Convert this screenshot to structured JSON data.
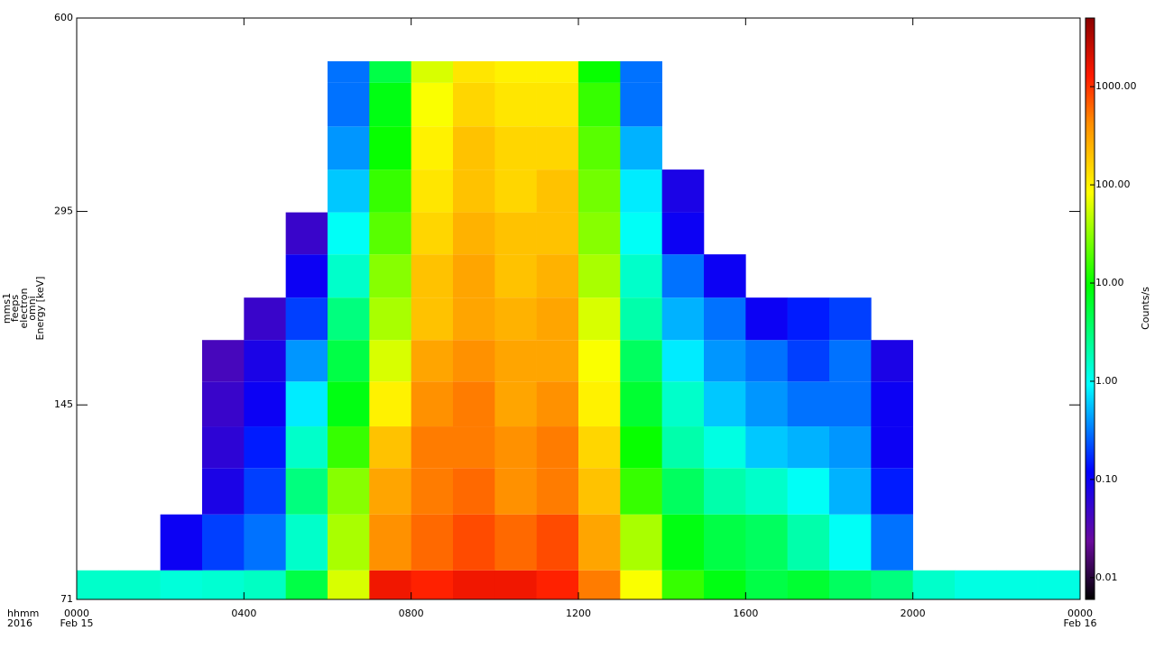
{
  "chart_data": {
    "type": "heatmap",
    "ylabel": [
      "mms1",
      "feeps",
      "electron",
      "omni",
      "Energy [keV]"
    ],
    "xlabel": "hhmm",
    "xlabel_year": "2016",
    "xlim": [
      0,
      24
    ],
    "xticks": [
      {
        "value": 0,
        "label": "0000"
      },
      {
        "value": 4,
        "label": "0400"
      },
      {
        "value": 8,
        "label": "0800"
      },
      {
        "value": 12,
        "label": "1200"
      },
      {
        "value": 16,
        "label": "1600"
      },
      {
        "value": 20,
        "label": "2000"
      },
      {
        "value": 24,
        "label": "0000"
      }
    ],
    "xtick_dates": [
      {
        "value": 0,
        "label": "Feb 15"
      },
      {
        "value": 24,
        "label": "Feb 16"
      }
    ],
    "ylim": [
      71,
      600
    ],
    "ylog": true,
    "yticks": [
      71,
      145,
      295,
      600
    ],
    "x_bins": [
      0,
      1,
      2,
      3,
      4,
      5,
      6,
      7,
      8,
      9,
      10,
      11,
      12,
      13,
      14,
      15,
      16,
      17,
      18,
      19,
      20,
      21,
      22,
      23,
      24
    ],
    "y_bins": [
      71,
      79,
      97,
      115,
      134,
      158,
      184,
      215,
      252,
      294,
      344,
      403,
      473,
      512
    ],
    "z": [
      [
        1.5,
        1.5,
        1.3,
        1.4,
        1.6,
        5,
        60,
        1500,
        1200,
        1500,
        1500,
        1200,
        500,
        80,
        15,
        8,
        5,
        6,
        4,
        3,
        1.5,
        1.2,
        1.2,
        1.2
      ],
      [
        null,
        null,
        0.1,
        0.2,
        0.3,
        1.5,
        40,
        400,
        600,
        800,
        600,
        800,
        300,
        40,
        8,
        5,
        4,
        2,
        1,
        0.3,
        null,
        null,
        null,
        null
      ],
      [
        null,
        null,
        null,
        0.08,
        0.2,
        3,
        30,
        300,
        500,
        600,
        400,
        500,
        200,
        15,
        4,
        2,
        1.5,
        1,
        0.5,
        0.15,
        null,
        null,
        null,
        null
      ],
      [
        null,
        null,
        null,
        0.06,
        0.15,
        1.5,
        15,
        200,
        500,
        500,
        400,
        500,
        150,
        10,
        2,
        1.2,
        0.6,
        0.5,
        0.4,
        0.1,
        null,
        null,
        null,
        null
      ],
      [
        null,
        null,
        null,
        0.05,
        0.1,
        0.8,
        8,
        100,
        400,
        500,
        300,
        400,
        100,
        6,
        1.5,
        0.6,
        0.4,
        0.3,
        0.3,
        0.1,
        null,
        null,
        null,
        null
      ],
      [
        null,
        null,
        null,
        0.04,
        0.08,
        0.4,
        5,
        60,
        300,
        400,
        300,
        300,
        80,
        4,
        0.8,
        0.4,
        0.3,
        0.2,
        0.3,
        0.08,
        null,
        null,
        null,
        null
      ],
      [
        null,
        null,
        null,
        null,
        0.05,
        0.2,
        3,
        40,
        200,
        300,
        250,
        300,
        60,
        2,
        0.5,
        0.3,
        0.1,
        0.15,
        0.2,
        null,
        null,
        null,
        null,
        null
      ],
      [
        null,
        null,
        null,
        null,
        null,
        0.1,
        1.5,
        30,
        200,
        300,
        200,
        250,
        40,
        1.5,
        0.3,
        0.1,
        null,
        null,
        null,
        null,
        null,
        null,
        null,
        null
      ],
      [
        null,
        null,
        null,
        null,
        null,
        0.05,
        1,
        20,
        150,
        250,
        200,
        200,
        30,
        1,
        0.1,
        null,
        null,
        null,
        null,
        null,
        null,
        null,
        null,
        null
      ],
      [
        null,
        null,
        null,
        null,
        null,
        null,
        0.6,
        15,
        120,
        200,
        150,
        200,
        25,
        0.8,
        0.08,
        null,
        null,
        null,
        null,
        null,
        null,
        null,
        null,
        null
      ],
      [
        null,
        null,
        null,
        null,
        null,
        null,
        0.4,
        10,
        100,
        200,
        150,
        150,
        20,
        0.5,
        null,
        null,
        null,
        null,
        null,
        null,
        null,
        null,
        null,
        null
      ],
      [
        null,
        null,
        null,
        null,
        null,
        null,
        0.3,
        8,
        80,
        150,
        120,
        120,
        15,
        0.3,
        null,
        null,
        null,
        null,
        null,
        null,
        null,
        null,
        null,
        null
      ],
      [
        null,
        null,
        null,
        null,
        null,
        null,
        0.3,
        5,
        60,
        120,
        100,
        100,
        10,
        0.3,
        null,
        null,
        null,
        null,
        null,
        null,
        null,
        null,
        null,
        null
      ]
    ],
    "zlim": [
      0.006,
      5000
    ],
    "zlog": true,
    "zticks": [
      {
        "value": 0.01,
        "label": "0.01"
      },
      {
        "value": 0.1,
        "label": "0.10"
      },
      {
        "value": 1,
        "label": "1.00"
      },
      {
        "value": 10,
        "label": "10.00"
      },
      {
        "value": 100,
        "label": "100.00"
      },
      {
        "value": 1000,
        "label": "1000.00"
      }
    ],
    "zlabel": "Counts/s",
    "colormap": [
      "#000000",
      "#6a0a9c",
      "#0000ff",
      "#00ffff",
      "#00ff00",
      "#ffff00",
      "#ff8c00",
      "#ff1a00",
      "#8b0000"
    ]
  }
}
